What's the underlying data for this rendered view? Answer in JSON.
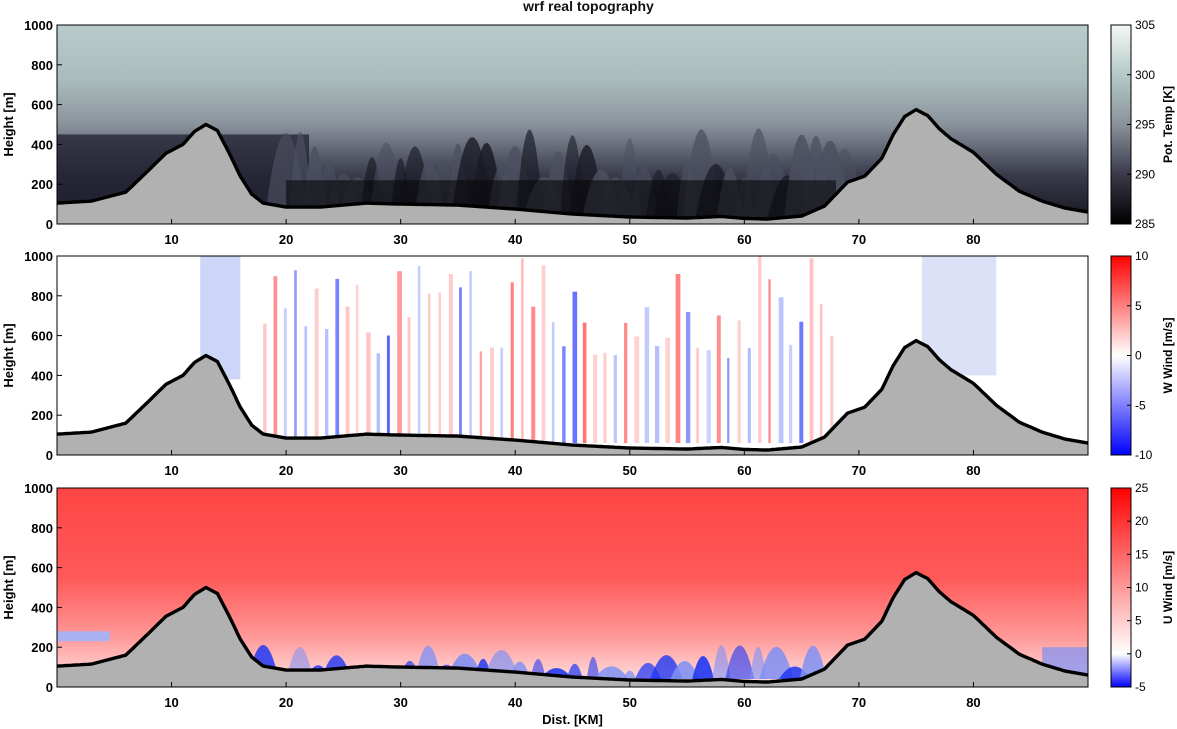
{
  "figure_title": "wrf real topography",
  "xlabel": "Dist. [KM]",
  "chart_data": [
    {
      "type": "heatmap",
      "title": "wrf real topography",
      "ylabel": "Height [m]",
      "xlabel": "",
      "xlim": [
        0,
        90
      ],
      "ylim": [
        0,
        1000
      ],
      "xticks": [
        10,
        20,
        30,
        40,
        50,
        60,
        70,
        80
      ],
      "yticks": [
        0,
        200,
        400,
        600,
        800,
        1000
      ],
      "colorbar": {
        "label": "Pot. Temp [K]",
        "range": [
          285,
          305
        ],
        "ticks": [
          285,
          290,
          295,
          300,
          305
        ],
        "colors": [
          "#000000",
          "#3a3a4a",
          "#8a929c",
          "#b4cac7",
          "#f4f8f7"
        ]
      },
      "field": "potential_temperature"
    },
    {
      "type": "heatmap",
      "ylabel": "Height [m]",
      "xlabel": "",
      "xlim": [
        0,
        90
      ],
      "ylim": [
        0,
        1000
      ],
      "xticks": [
        10,
        20,
        30,
        40,
        50,
        60,
        70,
        80
      ],
      "yticks": [
        0,
        200,
        400,
        600,
        800,
        1000
      ],
      "colorbar": {
        "label": "W Wind [m/s]",
        "range": [
          -10,
          10
        ],
        "ticks": [
          -10,
          -5,
          0,
          5,
          10
        ],
        "colors": [
          "#0000ff",
          "#ffffff",
          "#ff0000"
        ]
      },
      "field": "vertical_wind"
    },
    {
      "type": "heatmap",
      "ylabel": "Height [m]",
      "xlabel": "Dist. [KM]",
      "xlim": [
        0,
        90
      ],
      "ylim": [
        0,
        1000
      ],
      "xticks": [
        10,
        20,
        30,
        40,
        50,
        60,
        70,
        80
      ],
      "yticks": [
        0,
        200,
        400,
        600,
        800,
        1000
      ],
      "colorbar": {
        "label": "U Wind [m/s]",
        "range": [
          -5,
          25
        ],
        "ticks": [
          -5,
          0,
          5,
          10,
          15,
          20,
          25
        ],
        "colors": [
          "#0000ff",
          "#ffffff",
          "#ff0000"
        ]
      },
      "field": "horizontal_wind"
    }
  ],
  "terrain": {
    "x": [
      0,
      3,
      6,
      8,
      9.5,
      11,
      12,
      13,
      14,
      15,
      16,
      17,
      18,
      20,
      23,
      25,
      27,
      30,
      35,
      40,
      45,
      50,
      55,
      58,
      60,
      62,
      65,
      67,
      68,
      69,
      70.5,
      72,
      73,
      74,
      75,
      76,
      77,
      78,
      80,
      82,
      84,
      86,
      88,
      90
    ],
    "height_m": [
      105,
      115,
      160,
      270,
      355,
      400,
      465,
      500,
      470,
      360,
      240,
      150,
      105,
      85,
      85,
      95,
      105,
      100,
      95,
      75,
      50,
      35,
      30,
      38,
      28,
      25,
      40,
      90,
      150,
      210,
      240,
      330,
      450,
      540,
      575,
      545,
      480,
      430,
      360,
      250,
      165,
      115,
      80,
      60
    ]
  }
}
